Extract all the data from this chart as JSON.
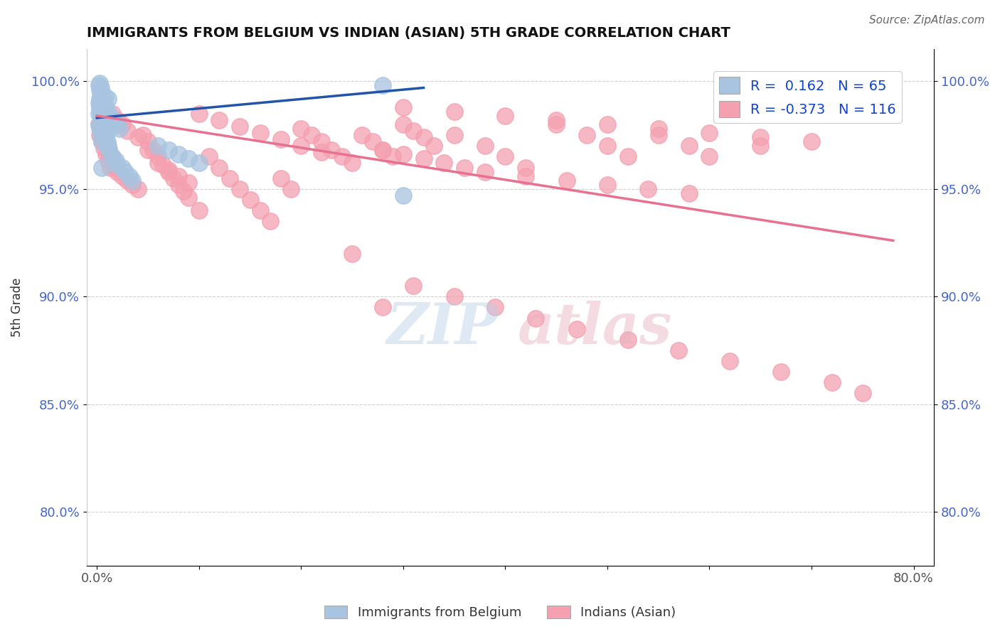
{
  "title": "IMMIGRANTS FROM BELGIUM VS INDIAN (ASIAN) 5TH GRADE CORRELATION CHART",
  "source": "Source: ZipAtlas.com",
  "ylabel": "5th Grade",
  "y_tick_labels": [
    "80.0%",
    "85.0%",
    "90.0%",
    "95.0%",
    "100.0%"
  ],
  "y_ticks": [
    0.8,
    0.85,
    0.9,
    0.95,
    1.0
  ],
  "ylim": [
    0.775,
    1.015
  ],
  "xlim": [
    -0.01,
    0.82
  ],
  "legend_blue_R": "0.162",
  "legend_blue_N": "65",
  "legend_pink_R": "-0.373",
  "legend_pink_N": "116",
  "blue_color": "#a8c4e0",
  "pink_color": "#f4a0b0",
  "blue_line_color": "#2255aa",
  "pink_line_color": "#e87090",
  "legend_label_blue": "Immigrants from Belgium",
  "legend_label_pink": "Indians (Asian)",
  "blue_scatter_x": [
    0.002,
    0.003,
    0.004,
    0.005,
    0.006,
    0.007,
    0.008,
    0.009,
    0.01,
    0.002,
    0.003,
    0.004,
    0.005,
    0.002,
    0.003,
    0.004,
    0.005,
    0.006,
    0.002,
    0.003,
    0.004,
    0.003,
    0.004,
    0.005,
    0.006,
    0.007,
    0.008,
    0.003,
    0.004,
    0.005,
    0.006,
    0.007,
    0.008,
    0.009,
    0.01,
    0.011,
    0.012,
    0.014,
    0.015,
    0.017,
    0.02,
    0.022,
    0.005,
    0.006,
    0.007,
    0.008,
    0.009,
    0.01,
    0.011,
    0.012,
    0.015,
    0.019,
    0.02,
    0.025,
    0.028,
    0.032,
    0.035,
    0.06,
    0.07,
    0.08,
    0.09,
    0.1,
    0.28,
    0.3,
    0.005
  ],
  "blue_scatter_y": [
    0.985,
    0.988,
    0.983,
    0.99,
    0.987,
    0.985,
    0.983,
    0.988,
    0.984,
    0.98,
    0.978,
    0.975,
    0.972,
    0.99,
    0.992,
    0.994,
    0.992,
    0.977,
    0.998,
    0.999,
    0.997,
    0.996,
    0.995,
    0.993,
    0.991,
    0.989,
    0.993,
    0.987,
    0.985,
    0.984,
    0.981,
    0.979,
    0.982,
    0.98,
    0.978,
    0.992,
    0.985,
    0.981,
    0.979,
    0.982,
    0.98,
    0.978,
    0.985,
    0.983,
    0.98,
    0.978,
    0.975,
    0.972,
    0.97,
    0.968,
    0.965,
    0.963,
    0.961,
    0.96,
    0.958,
    0.956,
    0.954,
    0.97,
    0.968,
    0.966,
    0.964,
    0.962,
    0.998,
    0.947,
    0.96
  ],
  "pink_scatter_x": [
    0.002,
    0.004,
    0.006,
    0.008,
    0.01,
    0.012,
    0.014,
    0.016,
    0.018,
    0.02,
    0.025,
    0.03,
    0.035,
    0.04,
    0.045,
    0.05,
    0.055,
    0.06,
    0.065,
    0.07,
    0.075,
    0.08,
    0.085,
    0.09,
    0.1,
    0.11,
    0.12,
    0.13,
    0.14,
    0.15,
    0.16,
    0.17,
    0.18,
    0.19,
    0.2,
    0.21,
    0.22,
    0.23,
    0.24,
    0.25,
    0.26,
    0.27,
    0.28,
    0.29,
    0.3,
    0.31,
    0.32,
    0.33,
    0.35,
    0.38,
    0.4,
    0.42,
    0.45,
    0.48,
    0.5,
    0.52,
    0.55,
    0.58,
    0.6,
    0.65,
    0.003,
    0.005,
    0.007,
    0.009,
    0.011,
    0.013,
    0.015,
    0.02,
    0.025,
    0.03,
    0.04,
    0.05,
    0.06,
    0.07,
    0.08,
    0.09,
    0.1,
    0.12,
    0.14,
    0.16,
    0.18,
    0.2,
    0.22,
    0.25,
    0.28,
    0.31,
    0.35,
    0.39,
    0.43,
    0.47,
    0.52,
    0.57,
    0.62,
    0.67,
    0.72,
    0.75,
    0.3,
    0.35,
    0.4,
    0.45,
    0.5,
    0.55,
    0.6,
    0.65,
    0.7,
    0.28,
    0.3,
    0.32,
    0.34,
    0.36,
    0.38,
    0.42,
    0.46,
    0.5,
    0.54,
    0.58
  ],
  "pink_scatter_y": [
    0.98,
    0.978,
    0.975,
    0.972,
    0.97,
    0.968,
    0.965,
    0.963,
    0.96,
    0.958,
    0.956,
    0.954,
    0.952,
    0.95,
    0.975,
    0.972,
    0.968,
    0.965,
    0.961,
    0.958,
    0.955,
    0.952,
    0.949,
    0.946,
    0.94,
    0.965,
    0.96,
    0.955,
    0.95,
    0.945,
    0.94,
    0.935,
    0.955,
    0.95,
    0.978,
    0.975,
    0.972,
    0.968,
    0.965,
    0.962,
    0.975,
    0.972,
    0.968,
    0.965,
    0.98,
    0.977,
    0.974,
    0.97,
    0.975,
    0.97,
    0.965,
    0.96,
    0.98,
    0.975,
    0.97,
    0.965,
    0.975,
    0.97,
    0.965,
    0.97,
    0.975,
    0.972,
    0.969,
    0.966,
    0.963,
    0.96,
    0.985,
    0.982,
    0.98,
    0.977,
    0.974,
    0.968,
    0.962,
    0.959,
    0.956,
    0.953,
    0.985,
    0.982,
    0.979,
    0.976,
    0.973,
    0.97,
    0.967,
    0.92,
    0.895,
    0.905,
    0.9,
    0.895,
    0.89,
    0.885,
    0.88,
    0.875,
    0.87,
    0.865,
    0.86,
    0.855,
    0.988,
    0.986,
    0.984,
    0.982,
    0.98,
    0.978,
    0.976,
    0.974,
    0.972,
    0.968,
    0.966,
    0.964,
    0.962,
    0.96,
    0.958,
    0.956,
    0.954,
    0.952,
    0.95,
    0.948
  ],
  "blue_trend_x": [
    0.0,
    0.32
  ],
  "blue_trend_y": [
    0.983,
    0.997
  ],
  "pink_trend_x": [
    0.0,
    0.78
  ],
  "pink_trend_y": [
    0.984,
    0.926
  ]
}
